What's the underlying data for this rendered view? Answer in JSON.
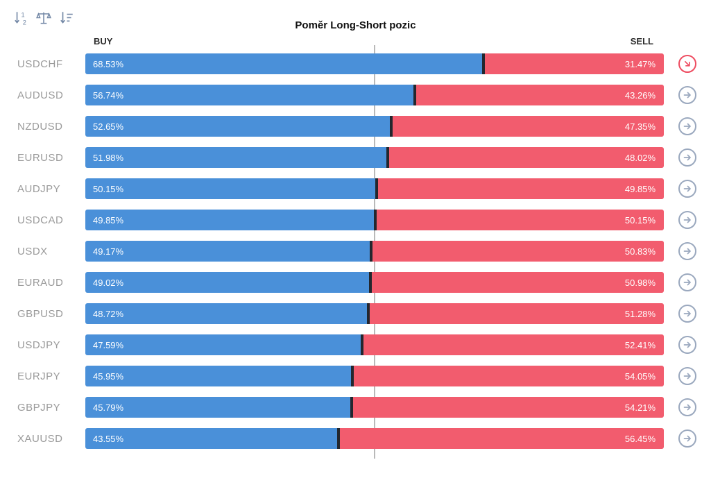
{
  "header": {
    "title": "Poměr Long-Short pozic",
    "buy_label": "BUY",
    "sell_label": "SELL"
  },
  "toolbar": {
    "icons": [
      "sort-ratio-icon",
      "balance-scale-icon",
      "sort-amount-icon"
    ]
  },
  "colors": {
    "buy_bar": "#4A90D9",
    "sell_bar": "#F25C6E",
    "bar_divider": "#23272E",
    "midline": "#B9B9B9",
    "pair_label": "#9A9A9A",
    "action_default": "#9AA8BE",
    "action_active": "#EE4D61"
  },
  "chart_data": {
    "type": "bar",
    "orientation": "horizontal_stacked",
    "title": "Poměr Long-Short pozic",
    "categories": [
      "USDCHF",
      "AUDUSD",
      "NZDUSD",
      "EURUSD",
      "AUDJPY",
      "USDCAD",
      "USDX",
      "EURAUD",
      "GBPUSD",
      "USDJPY",
      "EURJPY",
      "GBPJPY",
      "XAUUSD"
    ],
    "series": [
      {
        "name": "BUY",
        "values": [
          68.53,
          56.74,
          52.65,
          51.98,
          50.15,
          49.85,
          49.17,
          49.02,
          48.72,
          47.59,
          45.95,
          45.79,
          43.55
        ]
      },
      {
        "name": "SELL",
        "values": [
          31.47,
          43.26,
          47.35,
          48.02,
          49.85,
          50.15,
          50.83,
          50.98,
          51.28,
          52.41,
          54.05,
          54.21,
          56.45
        ]
      }
    ],
    "xlim": [
      0,
      100
    ],
    "midline_at": 50,
    "legend_position": "top: BUY left, SELL right",
    "grid": false
  },
  "rows": [
    {
      "pair": "USDCHF",
      "buy_pct": 68.53,
      "buy_label": "68.53%",
      "sell_label": "31.47%",
      "action_active": true
    },
    {
      "pair": "AUDUSD",
      "buy_pct": 56.74,
      "buy_label": "56.74%",
      "sell_label": "43.26%",
      "action_active": false
    },
    {
      "pair": "NZDUSD",
      "buy_pct": 52.65,
      "buy_label": "52.65%",
      "sell_label": "47.35%",
      "action_active": false
    },
    {
      "pair": "EURUSD",
      "buy_pct": 51.98,
      "buy_label": "51.98%",
      "sell_label": "48.02%",
      "action_active": false
    },
    {
      "pair": "AUDJPY",
      "buy_pct": 50.15,
      "buy_label": "50.15%",
      "sell_label": "49.85%",
      "action_active": false
    },
    {
      "pair": "USDCAD",
      "buy_pct": 49.85,
      "buy_label": "49.85%",
      "sell_label": "50.15%",
      "action_active": false
    },
    {
      "pair": "USDX",
      "buy_pct": 49.17,
      "buy_label": "49.17%",
      "sell_label": "50.83%",
      "action_active": false
    },
    {
      "pair": "EURAUD",
      "buy_pct": 49.02,
      "buy_label": "49.02%",
      "sell_label": "50.98%",
      "action_active": false
    },
    {
      "pair": "GBPUSD",
      "buy_pct": 48.72,
      "buy_label": "48.72%",
      "sell_label": "51.28%",
      "action_active": false
    },
    {
      "pair": "USDJPY",
      "buy_pct": 47.59,
      "buy_label": "47.59%",
      "sell_label": "52.41%",
      "action_active": false
    },
    {
      "pair": "EURJPY",
      "buy_pct": 45.95,
      "buy_label": "45.95%",
      "sell_label": "54.05%",
      "action_active": false
    },
    {
      "pair": "GBPJPY",
      "buy_pct": 45.79,
      "buy_label": "45.79%",
      "sell_label": "54.21%",
      "action_active": false
    },
    {
      "pair": "XAUUSD",
      "buy_pct": 43.55,
      "buy_label": "43.55%",
      "sell_label": "56.45%",
      "action_active": false
    }
  ]
}
